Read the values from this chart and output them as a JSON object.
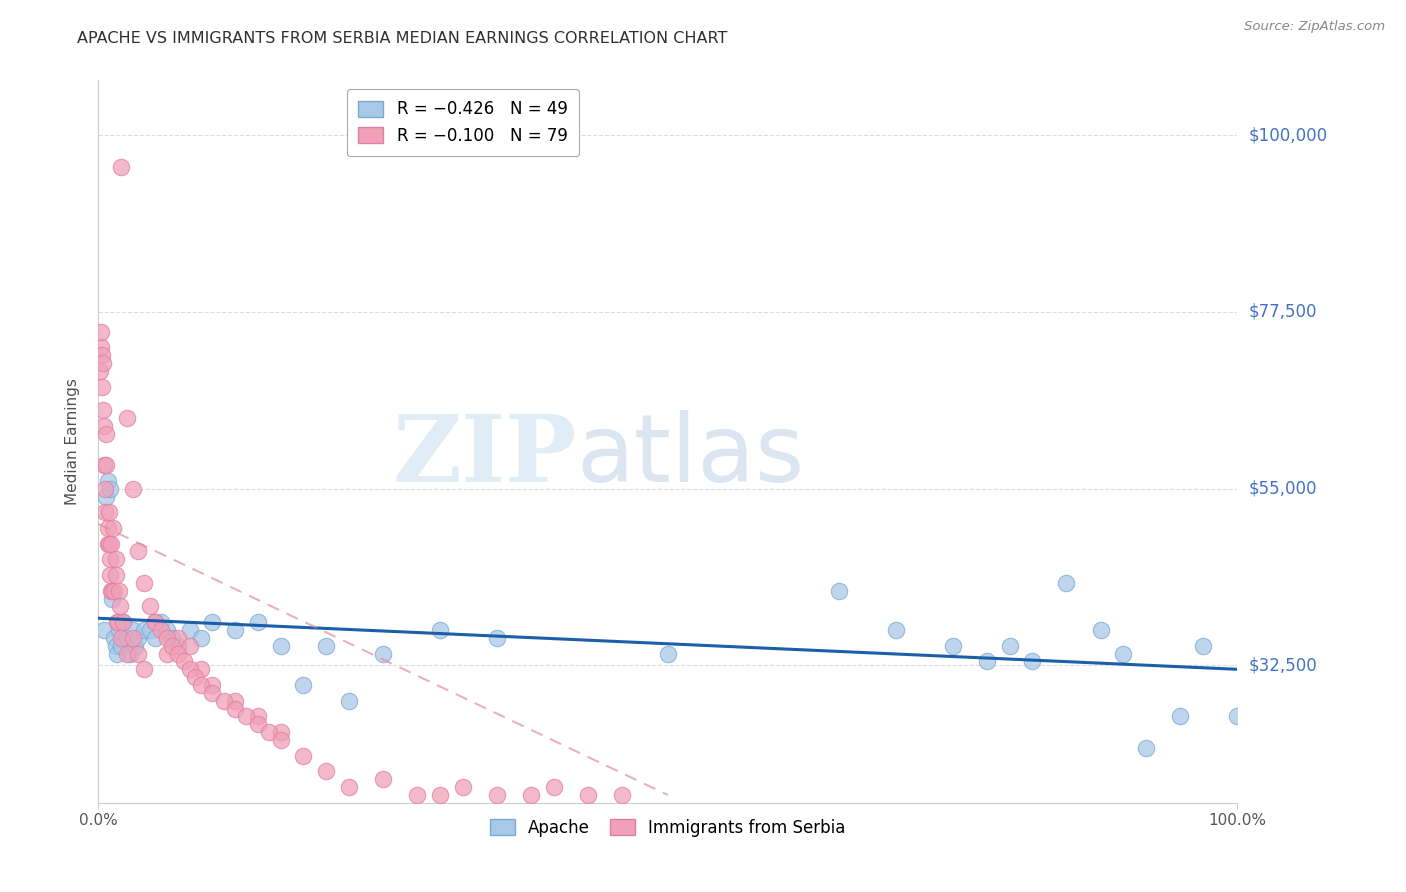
{
  "title": "APACHE VS IMMIGRANTS FROM SERBIA MEDIAN EARNINGS CORRELATION CHART",
  "source": "Source: ZipAtlas.com",
  "ylabel": "Median Earnings",
  "xlim": [
    0.0,
    1.0
  ],
  "ylim": [
    15000,
    107000
  ],
  "yticks": [
    32500,
    55000,
    77500,
    100000
  ],
  "ytick_labels": [
    "$32,500",
    "$55,000",
    "$77,500",
    "$100,000"
  ],
  "xtick_labels": [
    "0.0%",
    "100.0%"
  ],
  "apache_color": "#a8c8e8",
  "apache_edge_color": "#7aaad0",
  "serbia_color": "#f0a0b8",
  "serbia_edge_color": "#e080a0",
  "apache_line_color": "#1a5fa8",
  "serbia_line_color": "#e08898",
  "watermark_zip": "ZIP",
  "watermark_atlas": "atlas",
  "watermark_color_zip": "#c8ddf0",
  "watermark_color_atlas": "#b0c8e0",
  "background_color": "#ffffff",
  "grid_color": "#d8d8e0",
  "title_color": "#303030",
  "right_tick_color": "#4472c4",
  "apache_points_x": [
    0.005,
    0.007,
    0.008,
    0.01,
    0.012,
    0.014,
    0.015,
    0.016,
    0.018,
    0.02,
    0.022,
    0.025,
    0.028,
    0.03,
    0.032,
    0.035,
    0.04,
    0.045,
    0.05,
    0.055,
    0.06,
    0.065,
    0.07,
    0.08,
    0.09,
    0.1,
    0.12,
    0.14,
    0.16,
    0.18,
    0.2,
    0.22,
    0.25,
    0.3,
    0.35,
    0.5,
    0.65,
    0.7,
    0.75,
    0.78,
    0.8,
    0.82,
    0.85,
    0.88,
    0.9,
    0.92,
    0.95,
    0.97,
    1.0
  ],
  "apache_points_y": [
    37000,
    54000,
    56000,
    55000,
    41000,
    36000,
    35000,
    34000,
    37000,
    35000,
    38000,
    36000,
    34000,
    37000,
    35000,
    36000,
    37000,
    37000,
    36000,
    38000,
    37000,
    36000,
    35000,
    37000,
    36000,
    38000,
    37000,
    38000,
    35000,
    30000,
    35000,
    28000,
    34000,
    37000,
    36000,
    34000,
    42000,
    37000,
    35000,
    33000,
    35000,
    33000,
    43000,
    37000,
    34000,
    22000,
    26000,
    35000,
    26000
  ],
  "serbia_points_x": [
    0.001,
    0.002,
    0.002,
    0.003,
    0.003,
    0.004,
    0.004,
    0.005,
    0.005,
    0.006,
    0.006,
    0.007,
    0.007,
    0.008,
    0.008,
    0.009,
    0.009,
    0.01,
    0.01,
    0.011,
    0.011,
    0.012,
    0.013,
    0.014,
    0.015,
    0.015,
    0.016,
    0.017,
    0.018,
    0.019,
    0.02,
    0.022,
    0.025,
    0.03,
    0.035,
    0.04,
    0.05,
    0.06,
    0.07,
    0.08,
    0.09,
    0.1,
    0.12,
    0.14,
    0.16,
    0.02,
    0.025,
    0.03,
    0.035,
    0.04,
    0.045,
    0.05,
    0.055,
    0.06,
    0.065,
    0.07,
    0.075,
    0.08,
    0.085,
    0.09,
    0.1,
    0.11,
    0.12,
    0.13,
    0.14,
    0.15,
    0.16,
    0.18,
    0.2,
    0.22,
    0.25,
    0.28,
    0.3,
    0.32,
    0.35,
    0.38,
    0.4,
    0.43,
    0.46
  ],
  "serbia_points_y": [
    70000,
    73000,
    75000,
    72000,
    68000,
    65000,
    71000,
    63000,
    58000,
    55000,
    52000,
    58000,
    62000,
    48000,
    50000,
    52000,
    48000,
    46000,
    44000,
    42000,
    48000,
    42000,
    50000,
    42000,
    46000,
    44000,
    38000,
    38000,
    42000,
    40000,
    36000,
    38000,
    34000,
    36000,
    34000,
    32000,
    38000,
    34000,
    36000,
    35000,
    32000,
    30000,
    28000,
    26000,
    24000,
    96000,
    64000,
    55000,
    47000,
    43000,
    40000,
    38000,
    37000,
    36000,
    35000,
    34000,
    33000,
    32000,
    31000,
    30000,
    29000,
    28000,
    27000,
    26000,
    25000,
    24000,
    23000,
    21000,
    19000,
    17000,
    18000,
    16000,
    16000,
    17000,
    16000,
    16000,
    17000,
    16000,
    16000
  ],
  "apache_trend_x0": 0.0,
  "apache_trend_y0": 38500,
  "apache_trend_x1": 1.0,
  "apache_trend_y1": 32000,
  "serbia_trend_x0": 0.0,
  "serbia_trend_y0": 50500,
  "serbia_trend_x1": 0.5,
  "serbia_trend_y1": 16000
}
